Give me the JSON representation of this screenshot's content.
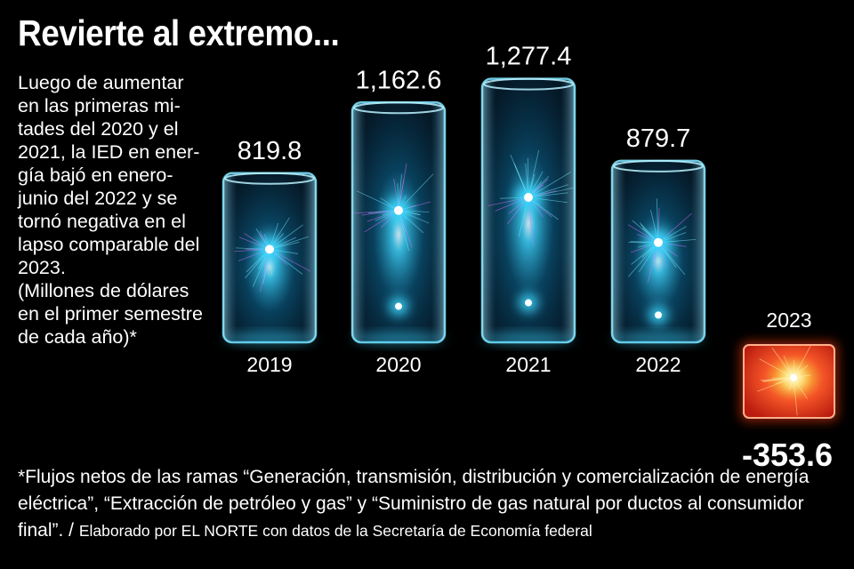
{
  "title": "Revierte al extremo...",
  "description": [
    "Luego de aumentar",
    "en las primeras mi-",
    "tades del 2020 y el",
    "2021, la IED en ener-",
    "gía bajó en enero-",
    "junio del 2022 y se",
    "tornó negativa en el",
    "lapso comparable del",
    "2023.",
    "(Millones de dólares",
    "en el primer semestre",
    "de cada año)*"
  ],
  "footnote": {
    "text": "*Flujos netos de las ramas “Generación, transmisión, distribución y comercialización de energía eléctrica”, “Extracción de petróleo y gas” y “Suministro de gas natural por ductos al consumidor final”. / ",
    "credit": "Elaborado por EL NORTE con datos de la Secretaría de Economía federal"
  },
  "colors": {
    "positive_glow": "#3fd8ff",
    "positive_core": "#c860ff",
    "negative_glow": "#ff5a2a",
    "negative_core": "#ffd23a"
  },
  "chart_data": {
    "type": "bar",
    "categories": [
      "2019",
      "2020",
      "2021",
      "2022",
      "2023"
    ],
    "values": [
      819.8,
      1162.6,
      1277.4,
      879.7,
      -353.6
    ],
    "value_labels": [
      "819.8",
      "1,162.6",
      "1,277.4",
      "879.7",
      "-353.6"
    ],
    "title": "Revierte al extremo...",
    "xlabel": "",
    "ylabel": "",
    "grid": false
  }
}
